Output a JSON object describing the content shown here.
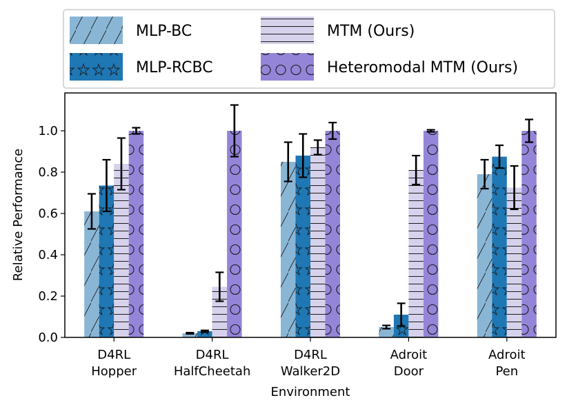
{
  "chart_data": {
    "type": "bar",
    "title": "",
    "xlabel": "Environment",
    "ylabel": "Relative Performance",
    "ylim": [
      0,
      1.19
    ],
    "yticks": [
      0.0,
      0.2,
      0.4,
      0.6,
      0.8,
      1.0
    ],
    "ytick_labels": [
      "0.0",
      "0.2",
      "0.4",
      "0.6",
      "0.8",
      "1.0"
    ],
    "categories": [
      [
        "D4RL",
        "Hopper"
      ],
      [
        "D4RL",
        "HalfCheetah"
      ],
      [
        "D4RL",
        "Walker2D"
      ],
      [
        "Adroit",
        "Door"
      ],
      [
        "Adroit",
        "Pen"
      ]
    ],
    "legend_position": "top",
    "series": [
      {
        "name": "MLP-BC",
        "color": "#8ab6d6",
        "hatch": "diagonal",
        "values": [
          0.61,
          0.02,
          0.85,
          0.05,
          0.79
        ],
        "errors": [
          0.085,
          0.003,
          0.095,
          0.008,
          0.07
        ]
      },
      {
        "name": "MLP-RCBC",
        "color": "#1f77b4",
        "hatch": "stars",
        "values": [
          0.735,
          0.03,
          0.88,
          0.11,
          0.875
        ],
        "errors": [
          0.125,
          0.004,
          0.105,
          0.055,
          0.055
        ]
      },
      {
        "name": "MTM (Ours)",
        "color": "#d6d2ec",
        "hatch": "horizontal",
        "values": [
          0.84,
          0.245,
          0.92,
          0.81,
          0.725
        ],
        "errors": [
          0.125,
          0.07,
          0.035,
          0.07,
          0.105
        ]
      },
      {
        "name": "Heteromodal MTM (Ours)",
        "color": "#9585d8",
        "hatch": "circles",
        "values": [
          1.0,
          1.0,
          1.0,
          1.0,
          1.0
        ],
        "errors": [
          0.015,
          0.125,
          0.04,
          0.005,
          0.055
        ]
      }
    ]
  }
}
